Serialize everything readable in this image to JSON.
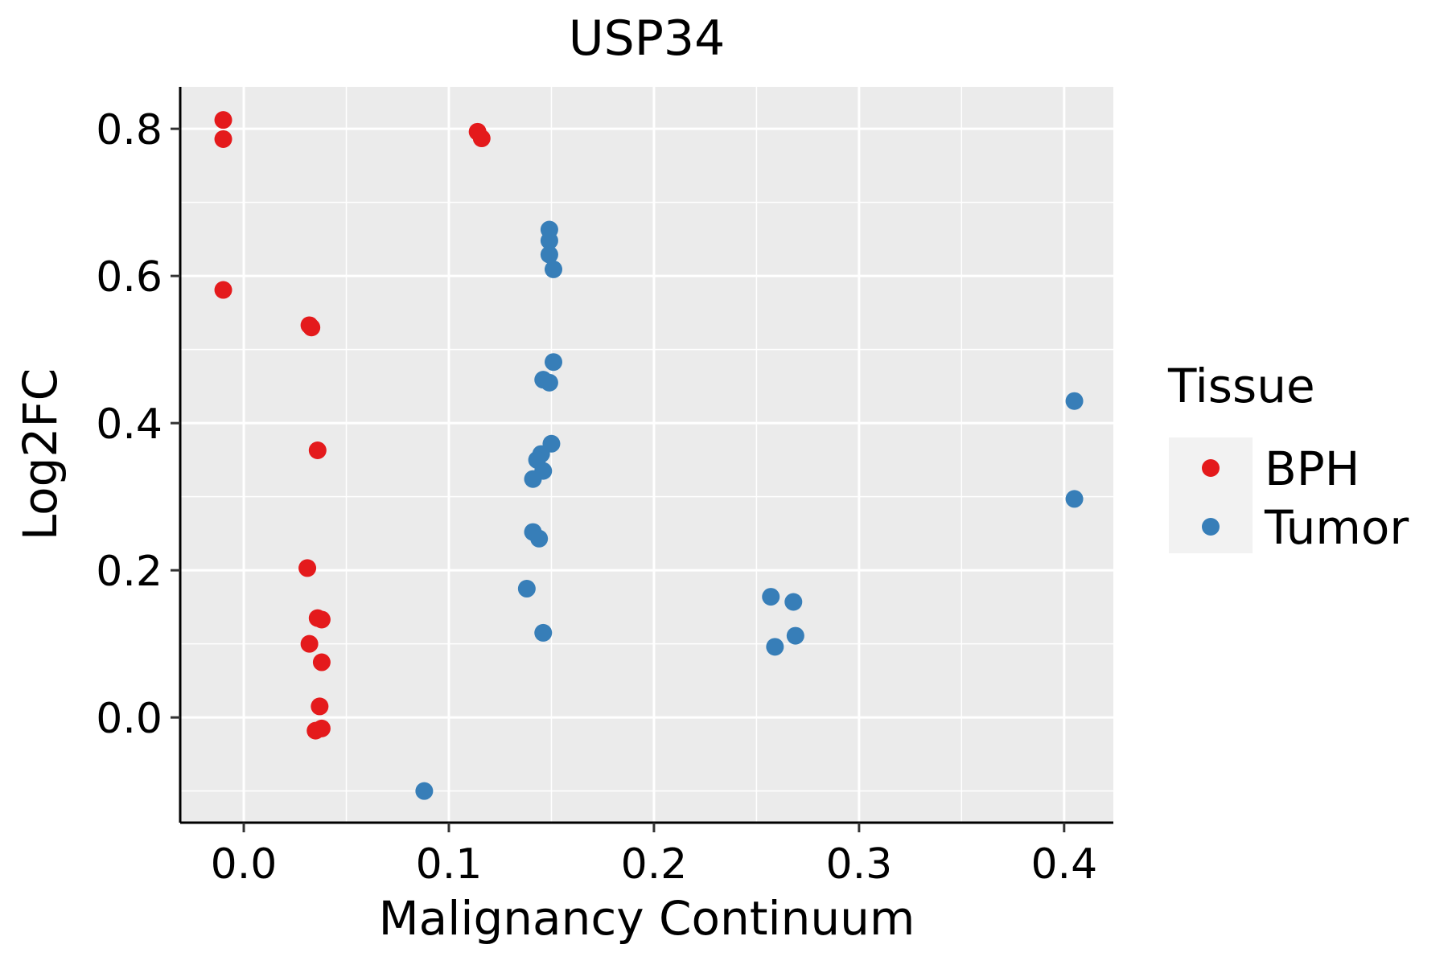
{
  "chart_data": {
    "type": "scatter",
    "title": "USP34",
    "xlabel": "Malignancy Continuum",
    "ylabel": "Log2FC",
    "xlim": [
      -0.031,
      0.424
    ],
    "ylim": [
      -0.143,
      0.857
    ],
    "x_ticks": [
      0.0,
      0.1,
      0.2,
      0.3,
      0.4
    ],
    "x_tick_labels": [
      "0.0",
      "0.1",
      "0.2",
      "0.3",
      "0.4"
    ],
    "y_ticks": [
      0.0,
      0.2,
      0.4,
      0.6,
      0.8
    ],
    "y_tick_labels": [
      "0.0",
      "0.2",
      "0.4",
      "0.6",
      "0.8"
    ],
    "x_minor": [
      -0.05,
      0.05,
      0.15,
      0.25,
      0.35
    ],
    "y_minor": [
      -0.1,
      0.1,
      0.3,
      0.5,
      0.7
    ],
    "grid": true,
    "legend": {
      "title": "Tissue",
      "position": "right"
    },
    "series": [
      {
        "name": "BPH",
        "color": "#E41A1C",
        "points": [
          [
            -0.01,
            0.812
          ],
          [
            -0.01,
            0.786
          ],
          [
            -0.01,
            0.581
          ],
          [
            0.114,
            0.796
          ],
          [
            0.116,
            0.787
          ],
          [
            0.032,
            0.533
          ],
          [
            0.033,
            0.53
          ],
          [
            0.036,
            0.363
          ],
          [
            0.031,
            0.203
          ],
          [
            0.036,
            0.135
          ],
          [
            0.038,
            0.133
          ],
          [
            0.032,
            0.1
          ],
          [
            0.038,
            0.075
          ],
          [
            0.037,
            0.015
          ],
          [
            0.035,
            -0.018
          ],
          [
            0.038,
            -0.015
          ]
        ]
      },
      {
        "name": "Tumor",
        "color": "#377EB8",
        "points": [
          [
            0.149,
            0.663
          ],
          [
            0.149,
            0.648
          ],
          [
            0.149,
            0.629
          ],
          [
            0.151,
            0.609
          ],
          [
            0.151,
            0.483
          ],
          [
            0.146,
            0.459
          ],
          [
            0.149,
            0.455
          ],
          [
            0.15,
            0.372
          ],
          [
            0.145,
            0.358
          ],
          [
            0.143,
            0.35
          ],
          [
            0.146,
            0.335
          ],
          [
            0.141,
            0.324
          ],
          [
            0.141,
            0.252
          ],
          [
            0.144,
            0.243
          ],
          [
            0.138,
            0.175
          ],
          [
            0.146,
            0.115
          ],
          [
            0.088,
            -0.1
          ],
          [
            0.257,
            0.164
          ],
          [
            0.268,
            0.157
          ],
          [
            0.259,
            0.096
          ],
          [
            0.269,
            0.111
          ],
          [
            0.405,
            0.43
          ],
          [
            0.405,
            0.297
          ]
        ]
      }
    ]
  }
}
